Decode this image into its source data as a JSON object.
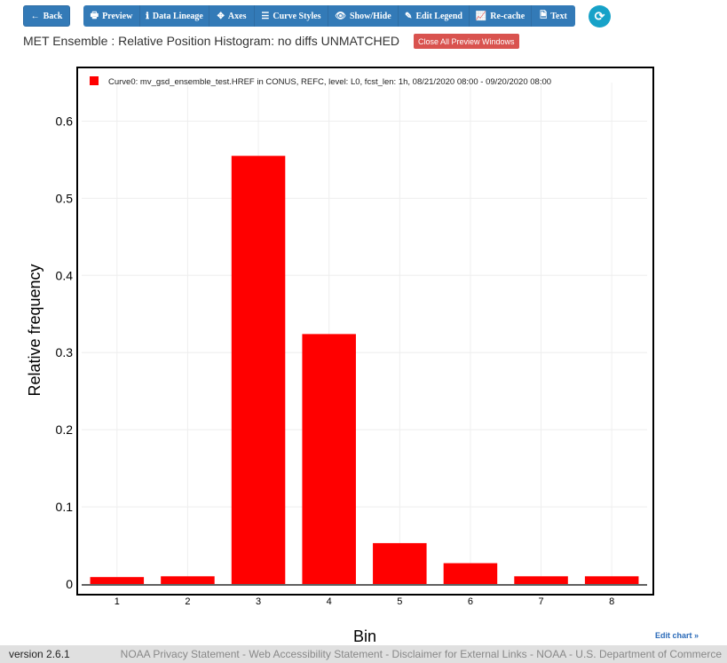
{
  "toolbar": {
    "back": {
      "label": "Back",
      "icon": "arrow-left-icon"
    },
    "buttons": [
      {
        "label": "Preview",
        "icon": "print-icon",
        "glyph": "🖶"
      },
      {
        "label": "Data Lineage",
        "icon": "info-icon",
        "glyph": "ℹ"
      },
      {
        "label": "Axes",
        "icon": "arrows-icon",
        "glyph": "✥"
      },
      {
        "label": "Curve Styles",
        "icon": "list-icon",
        "glyph": "☰"
      },
      {
        "label": "Show/Hide",
        "icon": "eye-icon",
        "glyph": "👁"
      },
      {
        "label": "Edit Legend",
        "icon": "pencil-icon",
        "glyph": "✎"
      },
      {
        "label": "Re-cache",
        "icon": "chart-line-icon",
        "glyph": "📈"
      },
      {
        "label": "Text",
        "icon": "file-text-icon",
        "glyph": "🗎"
      }
    ],
    "refresh_icon": "refresh-icon"
  },
  "page": {
    "title": "MET Ensemble : Relative Position Histogram: no diffs UNMATCHED",
    "close_button": "Close All Preview Windows"
  },
  "colors": {
    "bar": "#ff0000",
    "button": "#337ab7",
    "refresh": "#17a2c8",
    "close": "#d9534f"
  },
  "chart_data": {
    "type": "bar",
    "categories": [
      "1",
      "2",
      "3",
      "4",
      "5",
      "6",
      "7",
      "8"
    ],
    "series": [
      {
        "name": "Curve0: mv_gsd_ensemble_test.HREF in CONUS, REFC, level: L0, fcst_len: 1h, 08/21/2020 08:00 - 09/20/2020 08:00",
        "values": [
          0.009,
          0.01,
          0.555,
          0.324,
          0.053,
          0.027,
          0.01,
          0.01
        ]
      }
    ],
    "xlabel": "Bin",
    "ylabel": "Relative frequency",
    "ylim": [
      0,
      0.65
    ],
    "yticks": [
      0,
      0.1,
      0.2,
      0.3,
      0.4,
      0.5,
      0.6
    ],
    "ytick_labels": [
      "0",
      "0.1",
      "0.2",
      "0.3",
      "0.4",
      "0.5",
      "0.6"
    ],
    "grid": true,
    "legend_position": "top-left"
  },
  "edit_chart": "Edit chart »",
  "footer": {
    "version": "version 2.6.1",
    "links": "NOAA Privacy Statement - Web Accessibility Statement - Disclaimer for External Links - NOAA - U.S. Department of Commerce"
  }
}
